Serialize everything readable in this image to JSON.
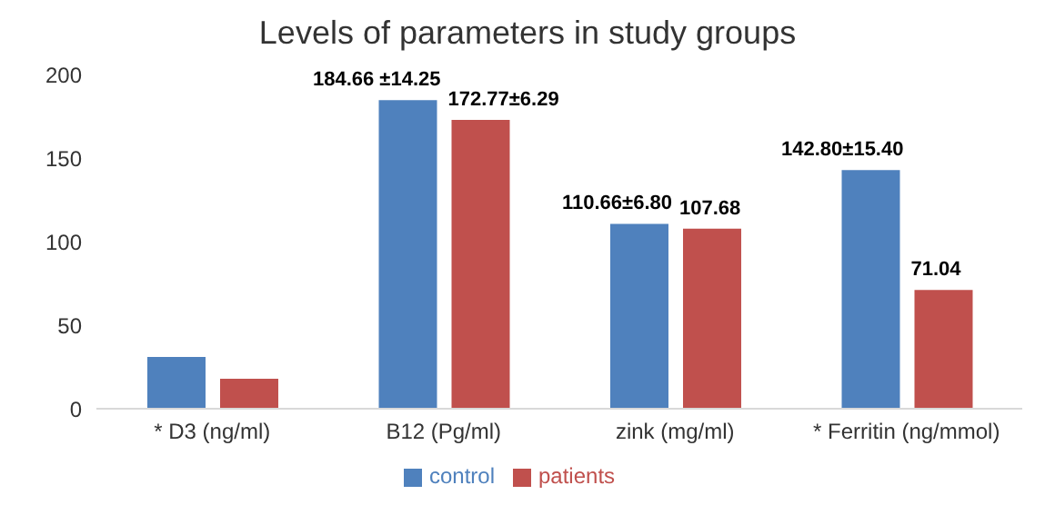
{
  "chart_data": {
    "type": "bar",
    "title": "Levels of parameters in study groups",
    "categories": [
      "* D3 (ng/ml)",
      "B12 (Pg/ml)",
      "zink (mg/ml)",
      "* Ferritin (ng/mmol)"
    ],
    "series": [
      {
        "name": "control",
        "color": "#4f81bd",
        "values": [
          31,
          184.66,
          110.66,
          142.8
        ],
        "value_labels": [
          null,
          "184.66 ±14.25",
          "110.66±6.80",
          "142.80±15.40"
        ]
      },
      {
        "name": "patients",
        "color": "#c0504d",
        "values": [
          18,
          172.77,
          107.68,
          71.04
        ],
        "value_labels": [
          null,
          "172.77±6.29",
          "107.68",
          "71.04"
        ]
      }
    ],
    "ylim": [
      0,
      200
    ],
    "yticks": [
      0,
      50,
      100,
      150,
      200
    ],
    "grid": false,
    "legend": "bottom"
  }
}
